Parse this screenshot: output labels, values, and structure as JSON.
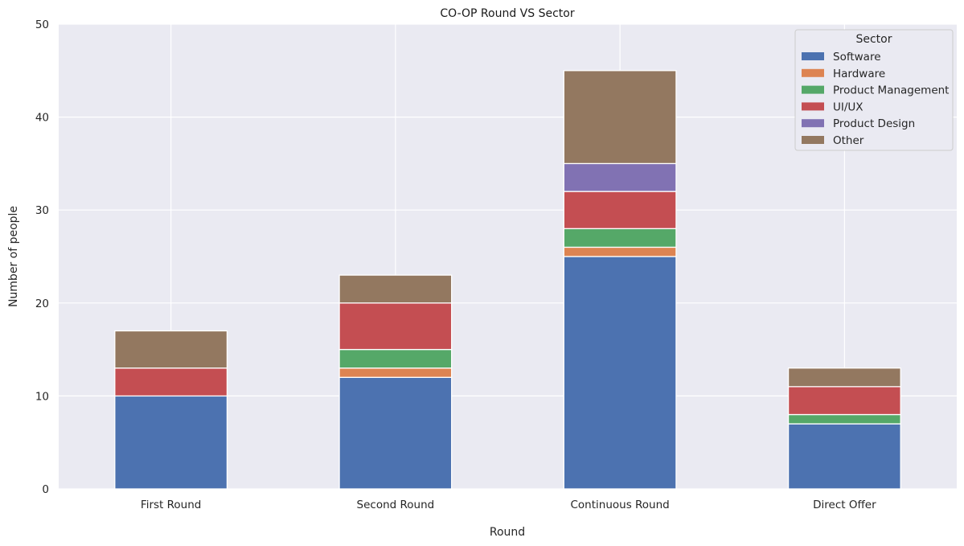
{
  "chart_data": {
    "type": "bar",
    "stacked": true,
    "title": "CO-OP Round VS Sector",
    "xlabel": "Round",
    "ylabel": "Number of people",
    "ylim": [
      0,
      50
    ],
    "yticks": [
      0,
      10,
      20,
      30,
      40,
      50
    ],
    "grid": true,
    "legend_title": "Sector",
    "legend_position": "top-right",
    "categories": [
      "First Round",
      "Second Round",
      "Continuous Round",
      "Direct Offer"
    ],
    "series": [
      {
        "name": "Software",
        "color": "#4c72b0",
        "values": [
          10,
          12,
          25,
          7
        ]
      },
      {
        "name": "Hardware",
        "color": "#dd8452",
        "values": [
          0,
          1,
          1,
          0
        ]
      },
      {
        "name": "Product Management",
        "color": "#55a868",
        "values": [
          0,
          2,
          2,
          1
        ]
      },
      {
        "name": "UI/UX",
        "color": "#c44e52",
        "values": [
          3,
          5,
          4,
          3
        ]
      },
      {
        "name": "Product Design",
        "color": "#8172b3",
        "values": [
          0,
          0,
          3,
          0
        ]
      },
      {
        "name": "Other",
        "color": "#937860",
        "values": [
          4,
          3,
          10,
          2
        ]
      }
    ]
  }
}
